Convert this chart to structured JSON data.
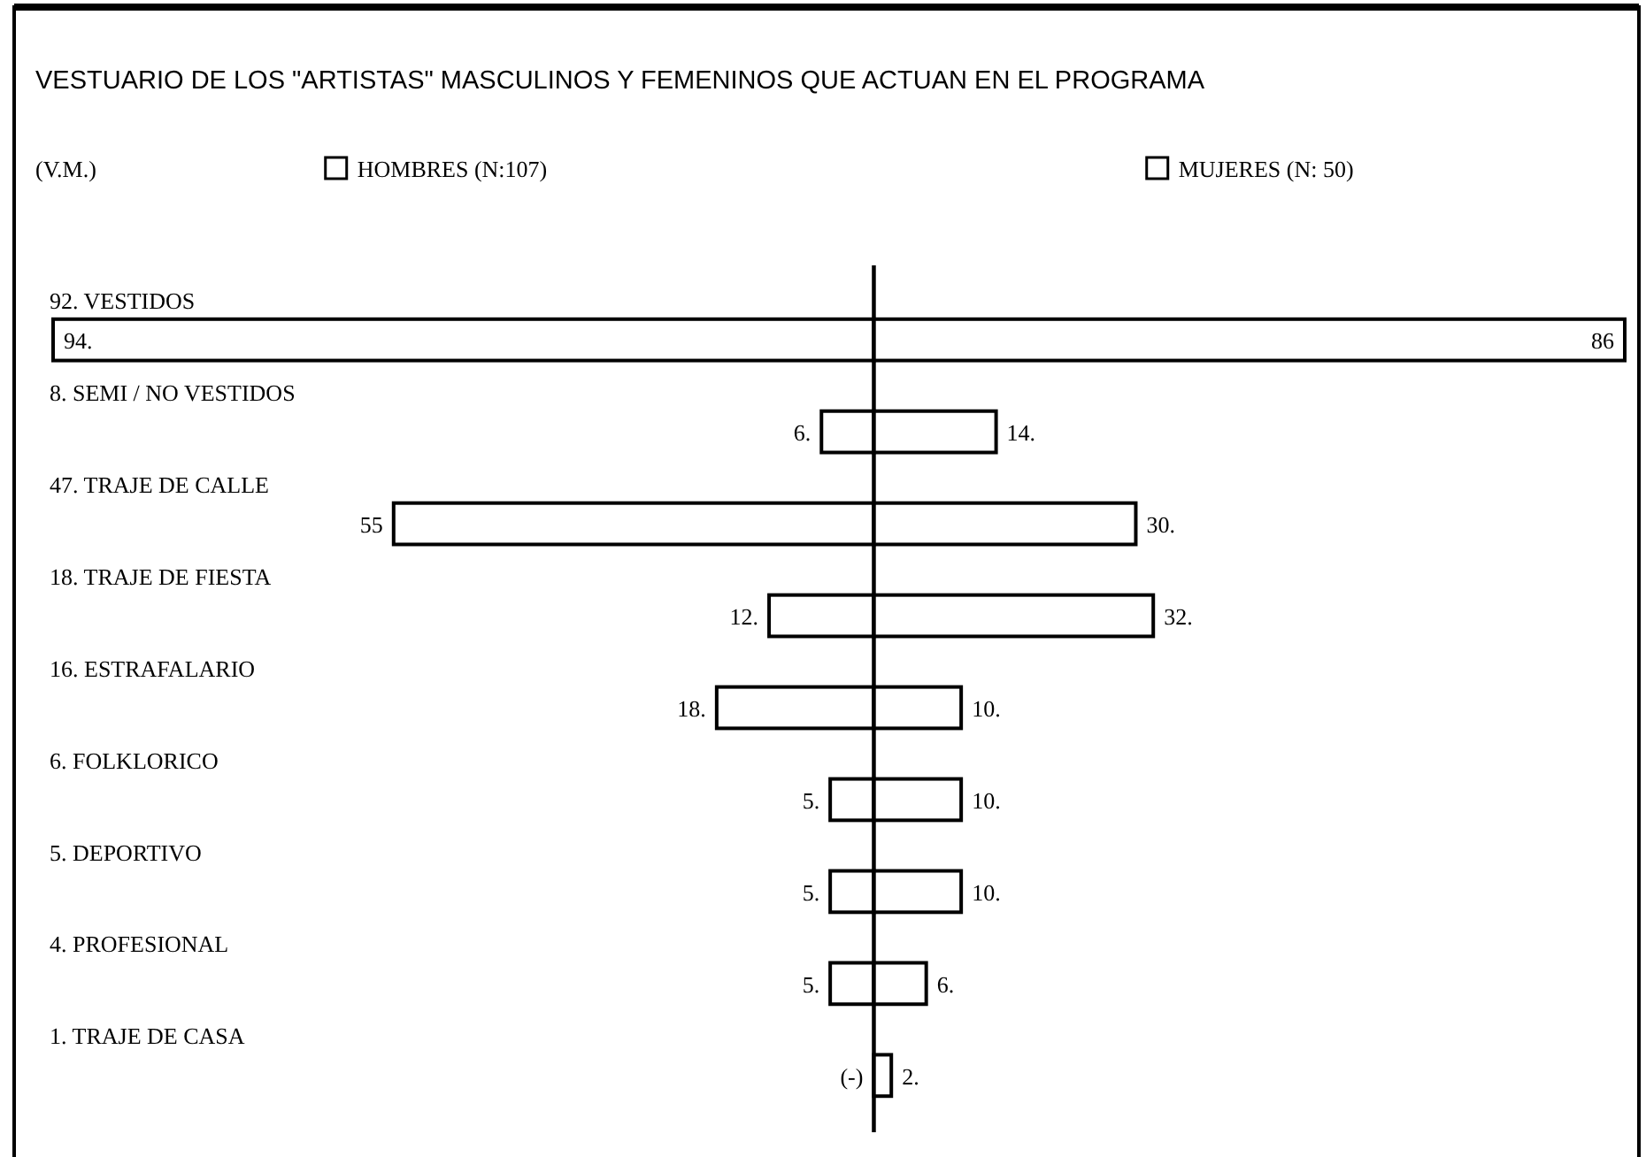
{
  "chart_data": [
    {
      "type": "bar",
      "orientation": "horizontal",
      "title": "VESTUARIO DE LOS \"ARTISTAS\" MASCULINOS Y FEMENINOS QUE ACTUAN EN EL PROGRAMA",
      "annotations": [
        "(V.M.)"
      ],
      "legend": "top",
      "xlim": [
        94,
        0
      ],
      "categories": [
        "92. VESTIDOS",
        "8. SEMI / NO VESTIDOS",
        "47. TRAJE DE CALLE",
        "18. TRAJE DE FIESTA",
        "16. ESTRAFALARIO",
        "6. FOLKLORICO",
        "5. DEPORTIVO",
        "4. PROFESIONAL",
        "1. TRAJE DE CASA"
      ],
      "series": [
        {
          "name": "HOMBRES (N:107)",
          "color": "#ffffff",
          "values": [
            94,
            6,
            55,
            12,
            18,
            5,
            5,
            5,
            null
          ],
          "value_labels": [
            "94.",
            "6.",
            "55",
            "12.",
            "18.",
            "5.",
            "5.",
            "5.",
            "(-)"
          ]
        }
      ]
    },
    {
      "type": "bar",
      "orientation": "horizontal",
      "legend": "top",
      "xlim": [
        0,
        86
      ],
      "categories": [
        null,
        null,
        null,
        null,
        null,
        null,
        null,
        null,
        null
      ],
      "series": [
        {
          "name": "MUJERES (N: 50)",
          "color": "#ffffff",
          "values": [
            86,
            14,
            30,
            32,
            10,
            10,
            10,
            6,
            2
          ],
          "value_labels": [
            "86",
            "14.",
            "30.",
            "32.",
            "10.",
            "10.",
            "10.",
            "6.",
            "2."
          ]
        }
      ]
    }
  ]
}
